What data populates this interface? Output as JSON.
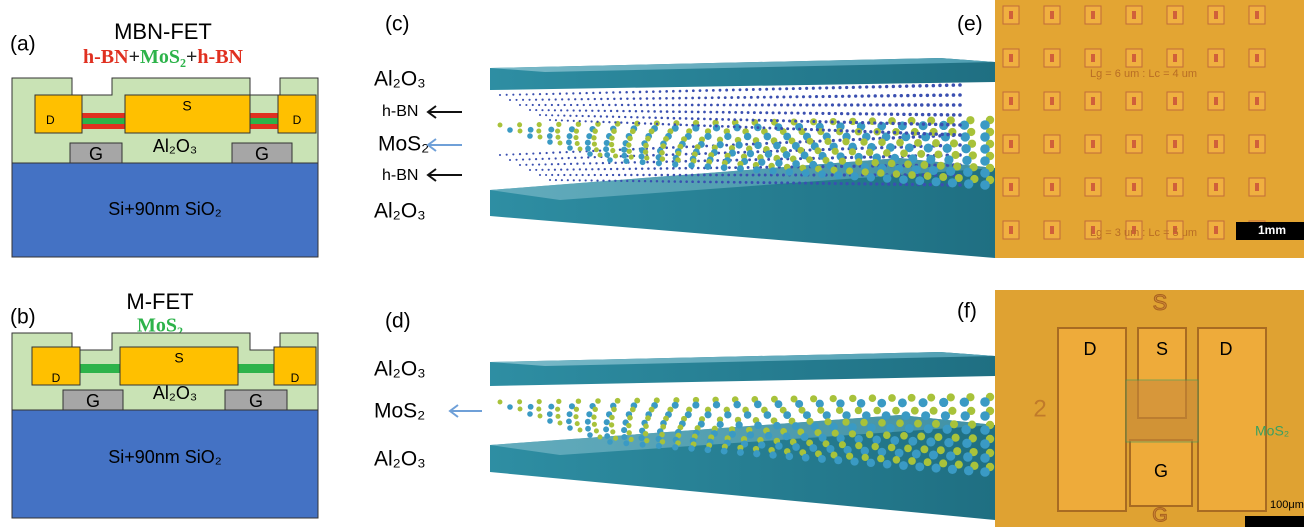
{
  "panels": {
    "a": {
      "label": "(a)",
      "title": "MBN-FET",
      "stack": [
        "h-BN",
        "+",
        "MoS₂",
        "+",
        "h-BN"
      ],
      "drain_left": "D",
      "source": "S",
      "drain_right": "D",
      "gate_left": "G",
      "gate_right": "G",
      "dielectric": "Al₂O₃",
      "substrate": "Si+90nm SiO₂"
    },
    "b": {
      "label": "(b)",
      "title": "M-FET",
      "stack": [
        "MoS₂"
      ],
      "drain_left": "D",
      "source": "S",
      "drain_right": "D",
      "gate_left": "G",
      "gate_right": "G",
      "dielectric": "Al₂O₃",
      "substrate": "Si+90nm SiO₂"
    },
    "c": {
      "label": "(c)",
      "layers": [
        "Al₂O₃",
        "h-BN",
        "MoS₂",
        "h-BN",
        "Al₂O₃"
      ]
    },
    "d": {
      "label": "(d)",
      "layers": [
        "Al₂O₃",
        "MoS₂",
        "Al₂O₃"
      ]
    },
    "e": {
      "label": "(e)",
      "annotations": [
        "Lg = 6 um : Lc = 4 um",
        "Lg = 3 um : Lc = 5 um"
      ],
      "scale_bar": "1mm"
    },
    "f": {
      "label": "(f)",
      "top_pad": "S",
      "electrodes": [
        "D",
        "S",
        "D"
      ],
      "device_number": "2",
      "material": "MoS₂",
      "gate": "G",
      "bottom_pad": "G",
      "scale_bar": "100μm"
    }
  }
}
